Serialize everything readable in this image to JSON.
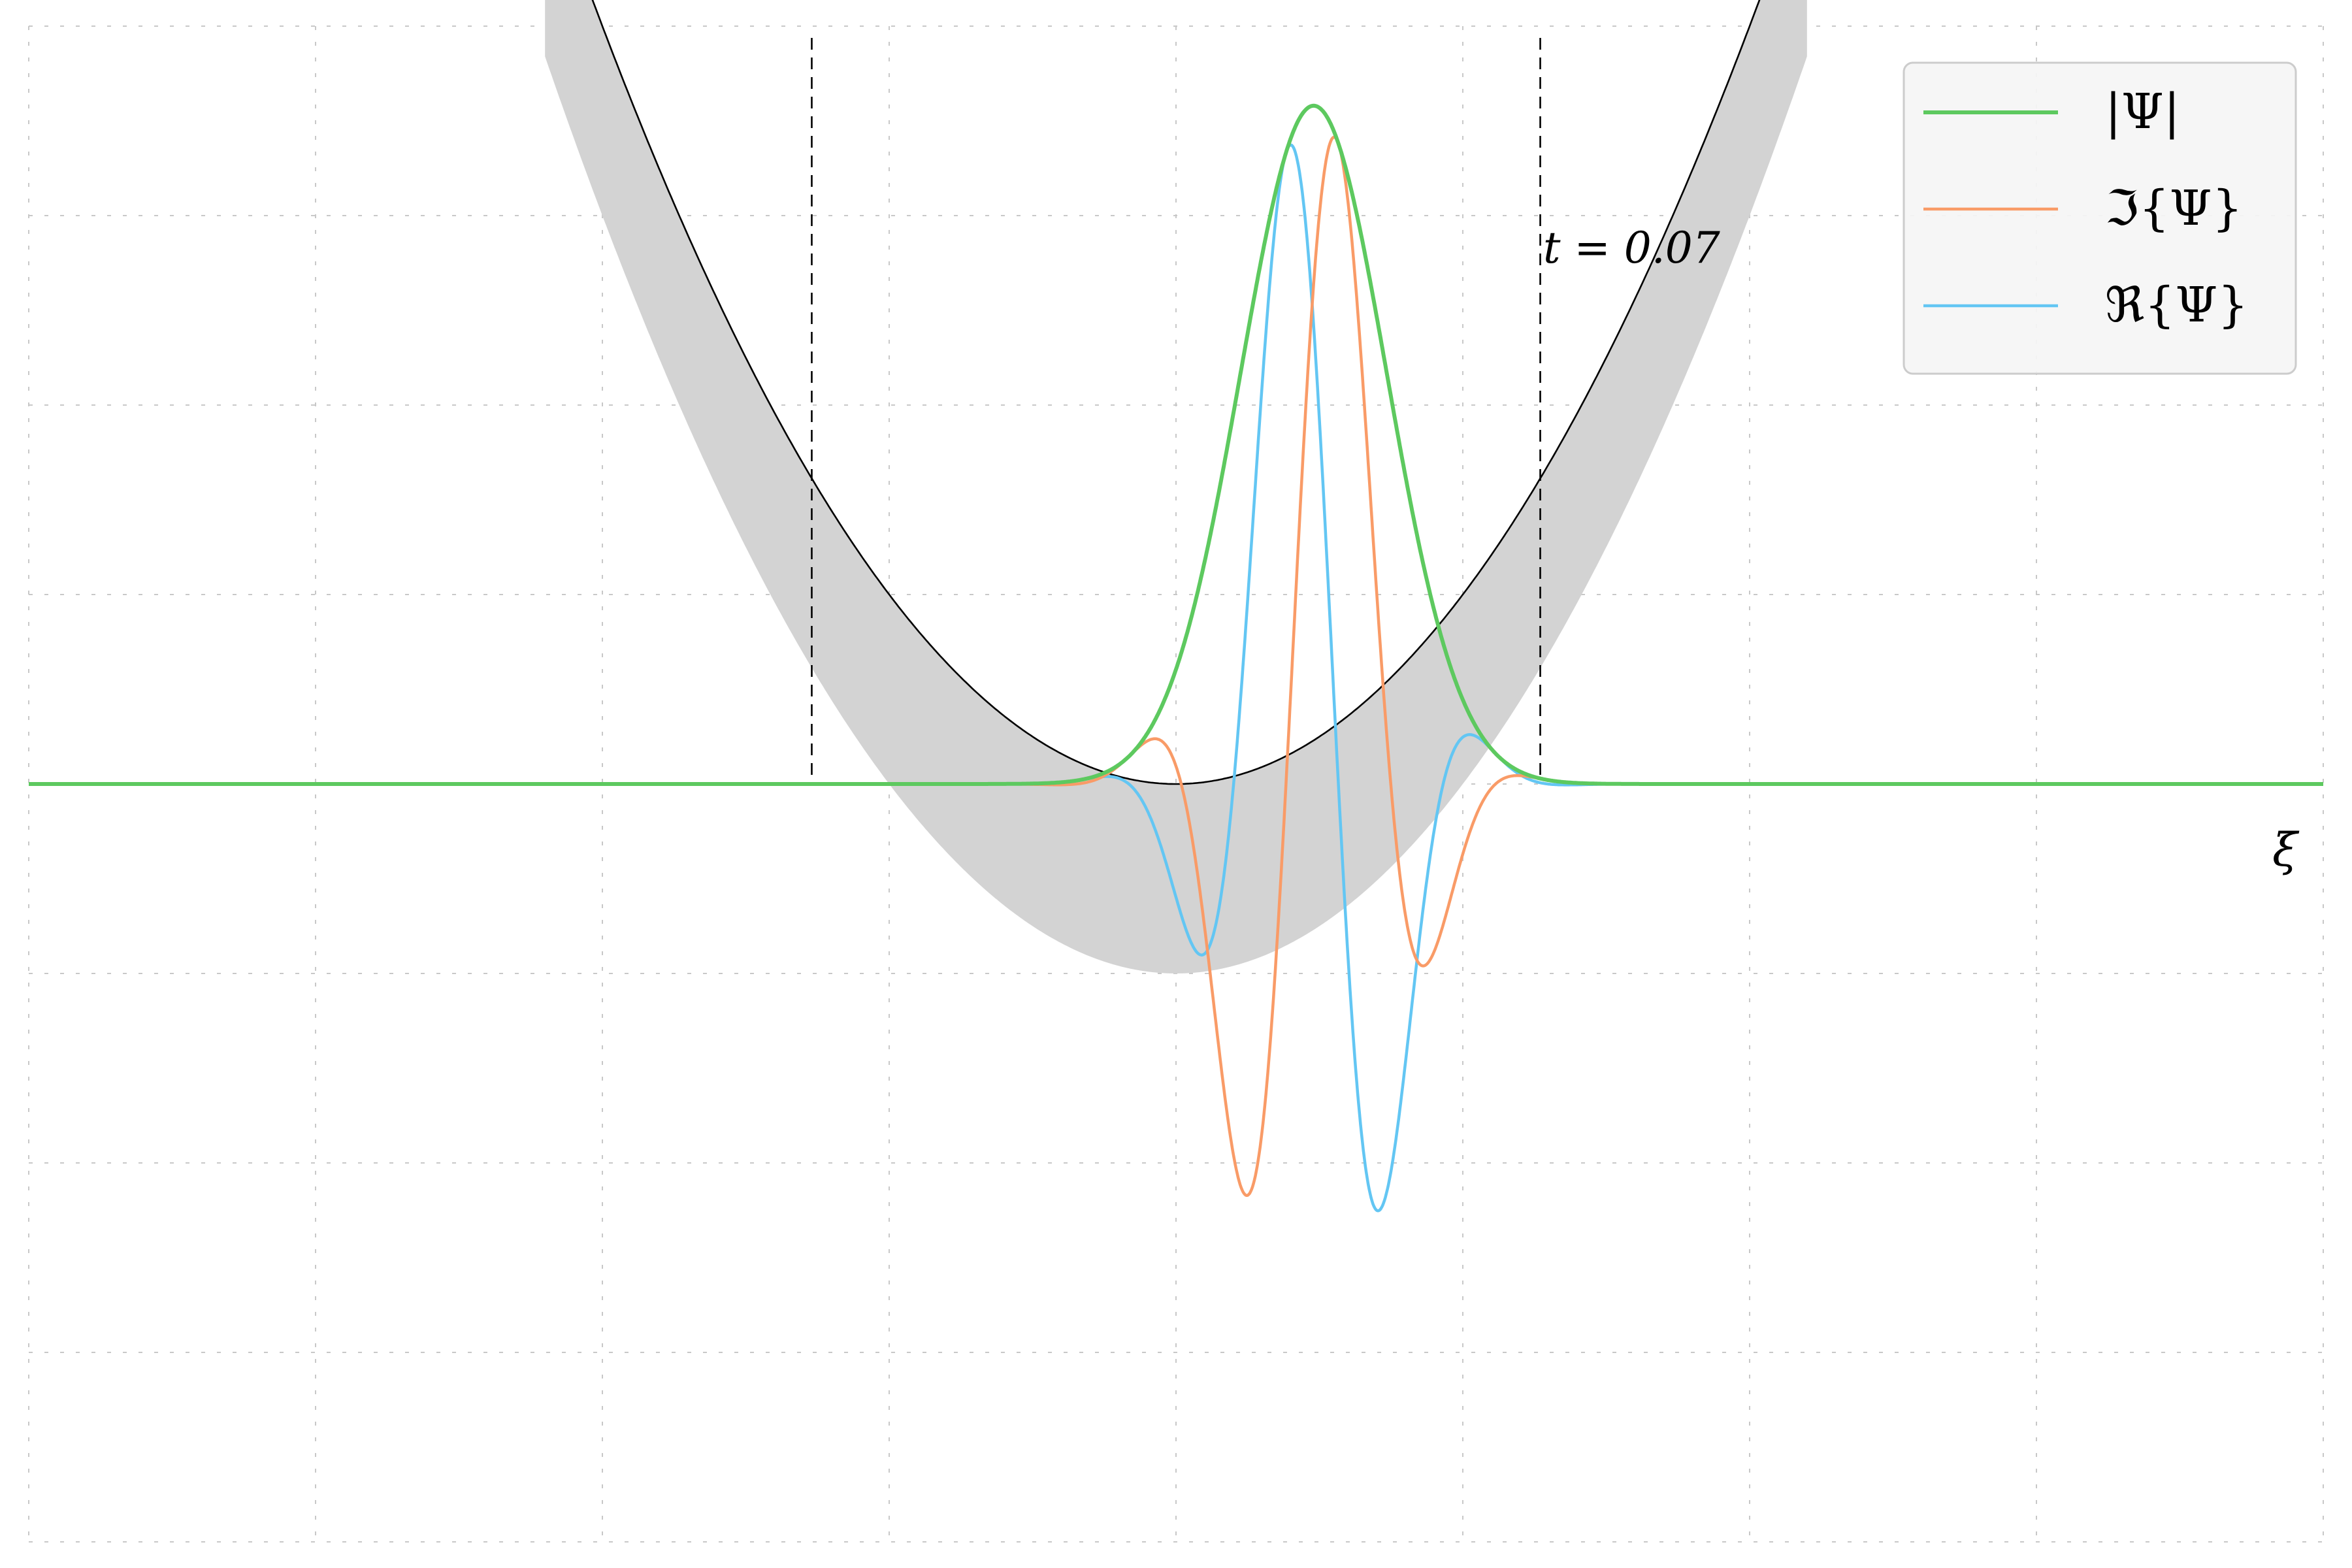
{
  "chart_data": {
    "type": "line",
    "title": "",
    "xlabel": "ξ",
    "ylabel": "",
    "annotation": "t = 0.07",
    "xlim": [
      -4,
      4
    ],
    "ylim": [
      -4,
      4
    ],
    "grid": true,
    "x_gridlines": [
      -4,
      -3,
      -2,
      -1,
      0,
      1,
      2,
      3,
      4
    ],
    "y_gridlines": [
      -4,
      -3,
      -2,
      -1,
      0,
      1,
      2,
      3,
      4
    ],
    "vertical_markers": [
      -1.27,
      1.27
    ],
    "legend_position": "top-right",
    "legend": [
      {
        "label": "|Ψ|",
        "color": "#5dc95f"
      },
      {
        "label": "ℑ{Ψ}",
        "color": "#f99b67"
      },
      {
        "label": "ℜ{Ψ}",
        "color": "#63c6f3"
      }
    ],
    "potential": {
      "description": "parabolic potential V(ξ) = ξ² (black curve)",
      "color": "#000000",
      "band_color": "#d3d3d3",
      "band_vertical_offset": -1.0
    },
    "packet": {
      "center": 0.48,
      "width": 0.36,
      "amplitude": 3.58,
      "wavenumber": 8.6,
      "phase": 0.83
    },
    "series": [
      {
        "name": "|Ψ|",
        "color": "#5dc95f"
      },
      {
        "name": "ℑ{Ψ}",
        "color": "#f99b67"
      },
      {
        "name": "ℜ{Ψ}",
        "color": "#63c6f3"
      }
    ]
  }
}
